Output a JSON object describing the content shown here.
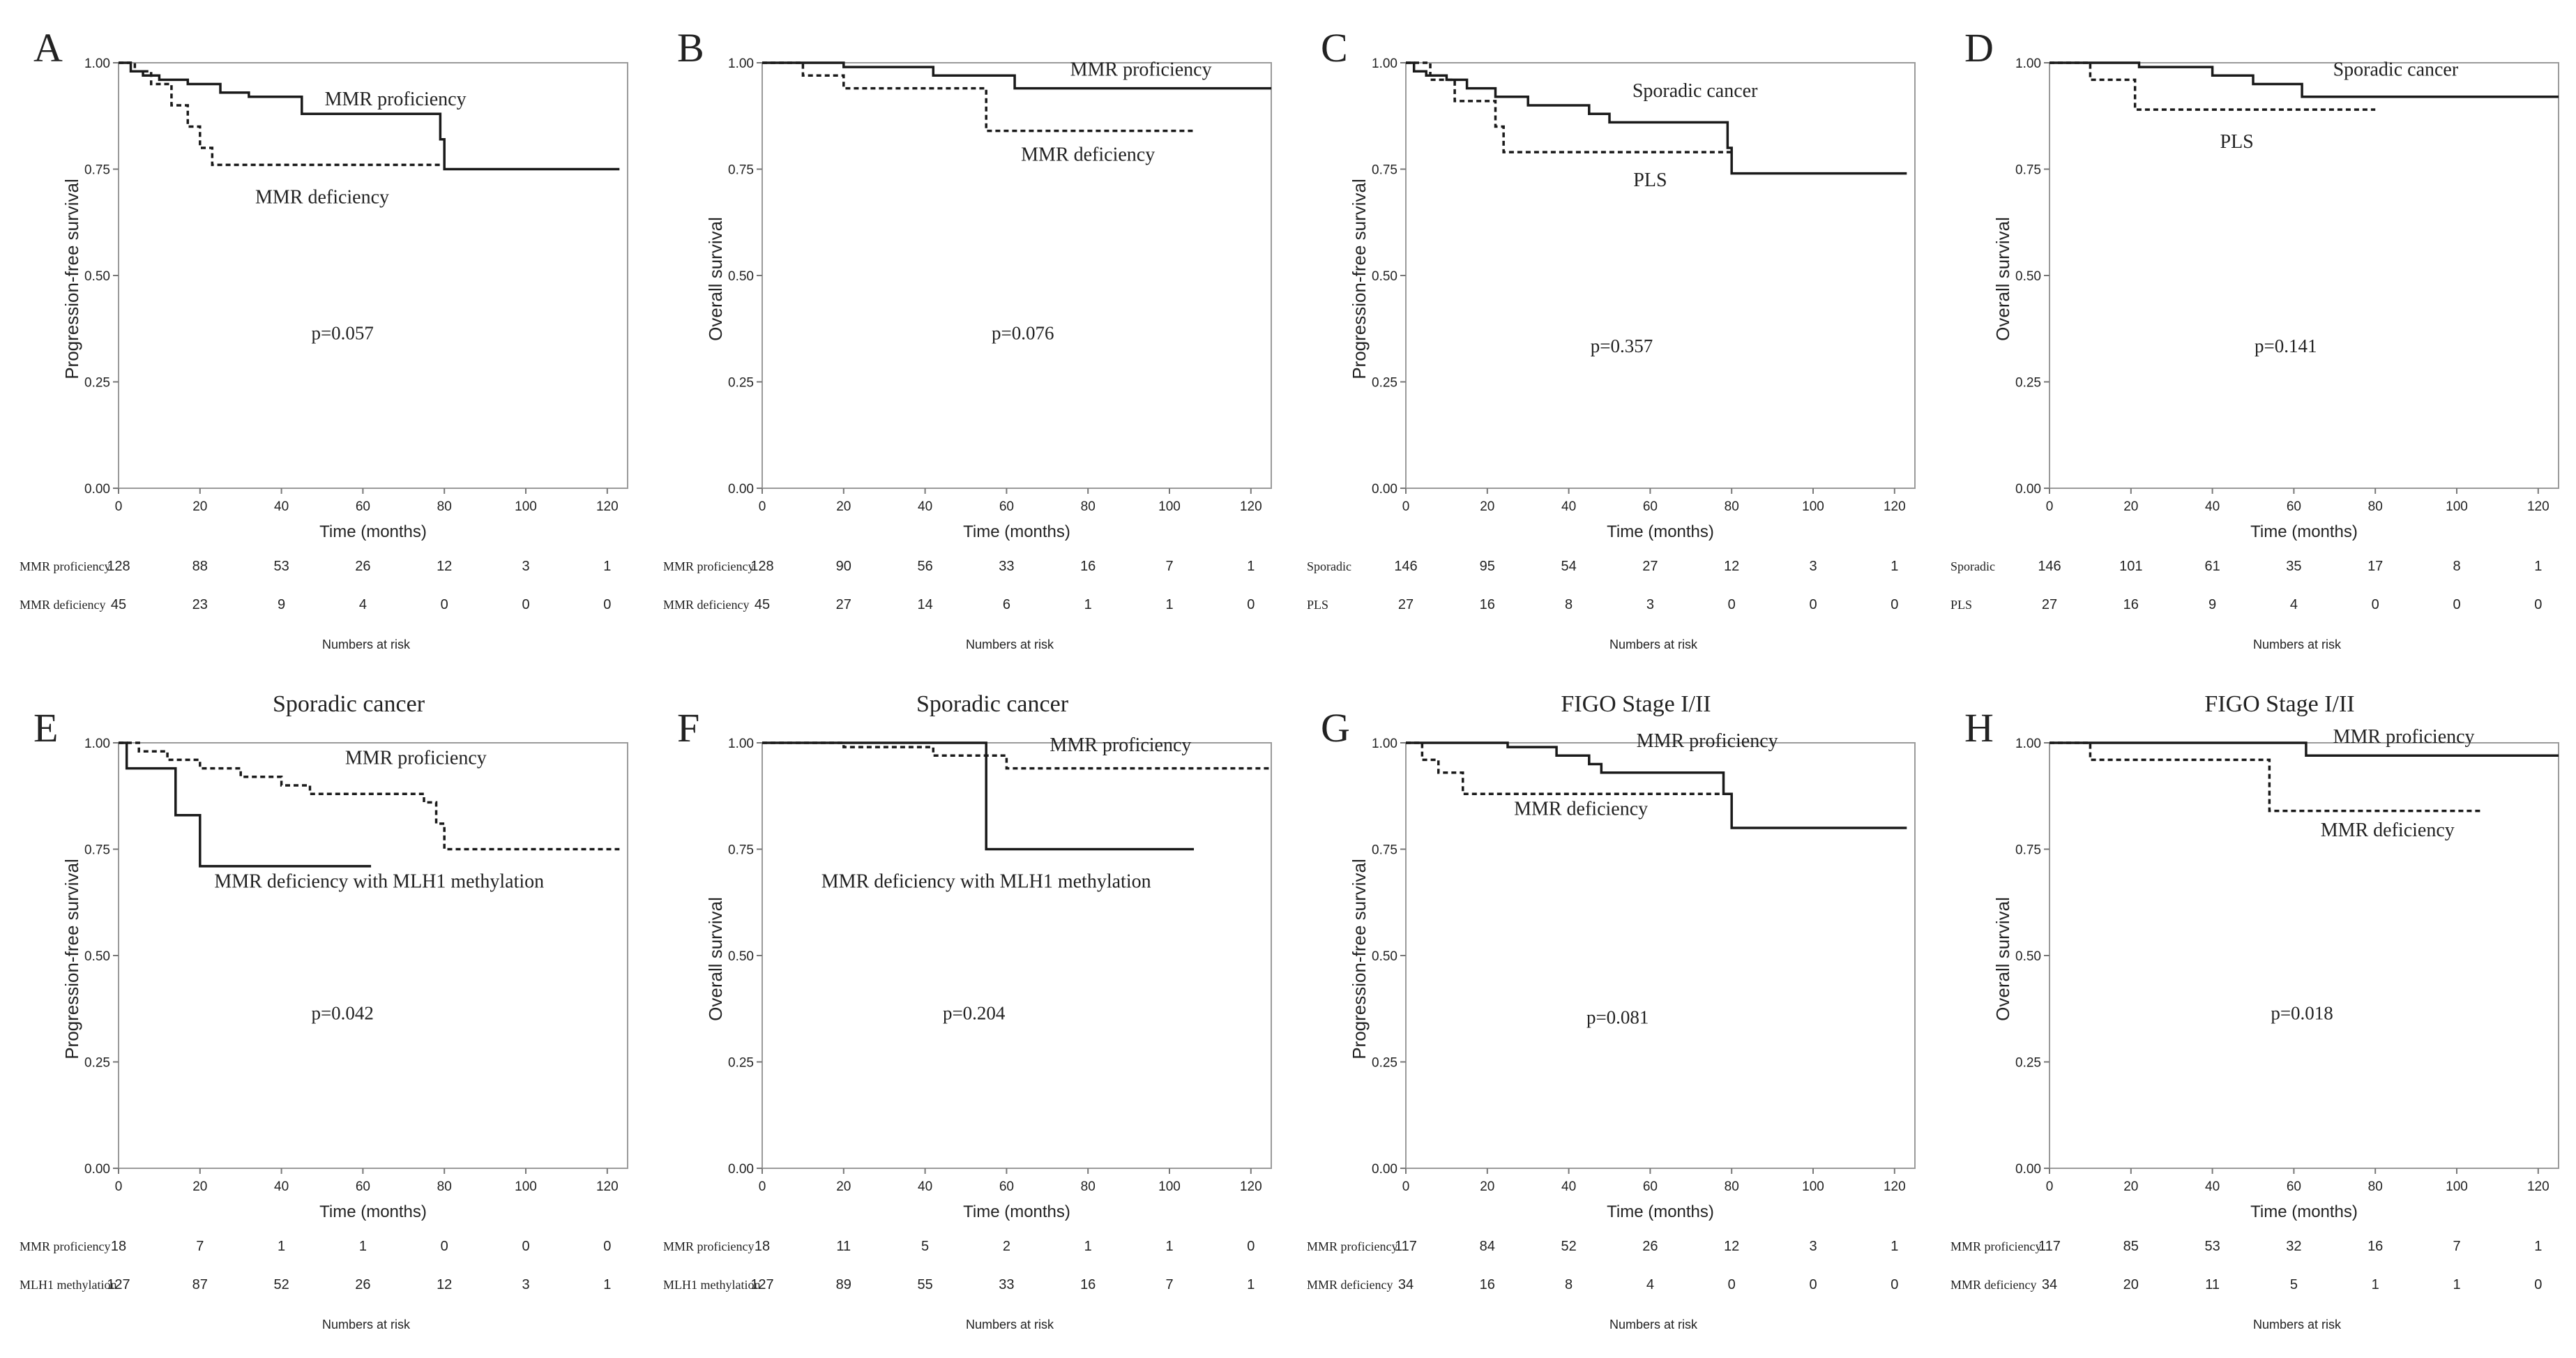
{
  "chart_data": [
    {
      "type": "line",
      "panel_letter": "A",
      "title": "",
      "ylabel": "Progression-free survival",
      "xlabel": "Time (months)",
      "xlim": [
        0,
        125
      ],
      "ylim": [
        0,
        1
      ],
      "xticks": [
        "0",
        "20",
        "40",
        "60",
        "80",
        "100",
        "120"
      ],
      "yticks": [
        "0.00",
        "0.25",
        "0.50",
        "0.75",
        "1.00"
      ],
      "p_value": "p=0.057",
      "p_at": [
        55,
        0.35
      ],
      "series": [
        {
          "name": "MMR proficiency",
          "style": "solid",
          "label_at": [
            68,
            0.9
          ],
          "points": [
            [
              0,
              1.0
            ],
            [
              3,
              0.98
            ],
            [
              6,
              0.97
            ],
            [
              10,
              0.96
            ],
            [
              17,
              0.95
            ],
            [
              25,
              0.93
            ],
            [
              32,
              0.92
            ],
            [
              45,
              0.88
            ],
            [
              59,
              0.88
            ],
            [
              79,
              0.82
            ],
            [
              80,
              0.75
            ],
            [
              123,
              0.75
            ]
          ]
        },
        {
          "name": "MMR deficiency",
          "style": "dashed",
          "label_at": [
            50,
            0.67
          ],
          "points": [
            [
              0,
              1.0
            ],
            [
              4,
              0.98
            ],
            [
              8,
              0.95
            ],
            [
              13,
              0.9
            ],
            [
              17,
              0.85
            ],
            [
              20,
              0.8
            ],
            [
              23,
              0.76
            ],
            [
              79,
              0.76
            ]
          ]
        }
      ],
      "risk_table": {
        "title": "Numbers at risk",
        "rows": [
          {
            "label": "MMR proficiency",
            "values": [
              "128",
              "88",
              "53",
              "26",
              "12",
              "3",
              "1"
            ]
          },
          {
            "label": "MMR deficiency",
            "values": [
              "45",
              "23",
              "9",
              "4",
              "0",
              "0",
              "0"
            ]
          }
        ]
      }
    },
    {
      "type": "line",
      "panel_letter": "B",
      "title": "",
      "ylabel": "Overall survival",
      "xlabel": "Time (months)",
      "xlim": [
        0,
        125
      ],
      "ylim": [
        0,
        1
      ],
      "xticks": [
        "0",
        "20",
        "40",
        "60",
        "80",
        "100",
        "120"
      ],
      "yticks": [
        "0.00",
        "0.25",
        "0.50",
        "0.75",
        "1.00"
      ],
      "p_value": "p=0.076",
      "p_at": [
        64,
        0.35
      ],
      "series": [
        {
          "name": "MMR proficiency",
          "style": "solid",
          "label_at": [
            93,
            0.97
          ],
          "points": [
            [
              0,
              1.0
            ],
            [
              20,
              0.99
            ],
            [
              42,
              0.97
            ],
            [
              62,
              0.94
            ],
            [
              125,
              0.94
            ]
          ]
        },
        {
          "name": "MMR deficiency",
          "style": "dashed",
          "label_at": [
            80,
            0.77
          ],
          "points": [
            [
              0,
              1.0
            ],
            [
              10,
              0.97
            ],
            [
              20,
              0.94
            ],
            [
              55,
              0.84
            ],
            [
              106,
              0.84
            ]
          ]
        }
      ],
      "risk_table": {
        "title": "Numbers at risk",
        "rows": [
          {
            "label": "MMR proficiency",
            "values": [
              "128",
              "90",
              "56",
              "33",
              "16",
              "7",
              "1"
            ]
          },
          {
            "label": "MMR deficiency",
            "values": [
              "45",
              "27",
              "14",
              "6",
              "1",
              "1",
              "0"
            ]
          }
        ]
      }
    },
    {
      "type": "line",
      "panel_letter": "C",
      "title": "",
      "ylabel": "Progression-free survival",
      "xlabel": "Time (months)",
      "xlim": [
        0,
        125
      ],
      "ylim": [
        0,
        1
      ],
      "xticks": [
        "0",
        "20",
        "40",
        "60",
        "80",
        "100",
        "120"
      ],
      "yticks": [
        "0.00",
        "0.25",
        "0.50",
        "0.75",
        "1.00"
      ],
      "p_value": "p=0.357",
      "p_at": [
        53,
        0.32
      ],
      "series": [
        {
          "name": "Sporadic cancer",
          "style": "solid",
          "label_at": [
            71,
            0.92
          ],
          "points": [
            [
              0,
              1.0
            ],
            [
              2,
              0.98
            ],
            [
              5,
              0.97
            ],
            [
              10,
              0.96
            ],
            [
              15,
              0.94
            ],
            [
              22,
              0.92
            ],
            [
              30,
              0.9
            ],
            [
              45,
              0.88
            ],
            [
              50,
              0.86
            ],
            [
              79,
              0.8
            ],
            [
              80,
              0.74
            ],
            [
              123,
              0.74
            ]
          ]
        },
        {
          "name": "PLS",
          "style": "dashed",
          "label_at": [
            60,
            0.71
          ],
          "points": [
            [
              0,
              1.0
            ],
            [
              6,
              0.96
            ],
            [
              12,
              0.91
            ],
            [
              22,
              0.85
            ],
            [
              24,
              0.79
            ],
            [
              80,
              0.79
            ]
          ]
        }
      ],
      "risk_table": {
        "title": "Numbers at risk",
        "rows": [
          {
            "label": "Sporadic",
            "values": [
              "146",
              "95",
              "54",
              "27",
              "12",
              "3",
              "1"
            ]
          },
          {
            "label": "PLS",
            "values": [
              "27",
              "16",
              "8",
              "3",
              "0",
              "0",
              "0"
            ]
          }
        ]
      }
    },
    {
      "type": "line",
      "panel_letter": "D",
      "title": "",
      "ylabel": "Overall survival",
      "xlabel": "Time (months)",
      "xlim": [
        0,
        125
      ],
      "ylim": [
        0,
        1
      ],
      "xticks": [
        "0",
        "20",
        "40",
        "60",
        "80",
        "100",
        "120"
      ],
      "yticks": [
        "0.00",
        "0.25",
        "0.50",
        "0.75",
        "1.00"
      ],
      "p_value": "p=0.141",
      "p_at": [
        58,
        0.32
      ],
      "series": [
        {
          "name": "Sporadic cancer",
          "style": "solid",
          "label_at": [
            85,
            0.97
          ],
          "points": [
            [
              0,
              1.0
            ],
            [
              22,
              0.99
            ],
            [
              40,
              0.97
            ],
            [
              50,
              0.95
            ],
            [
              62,
              0.92
            ],
            [
              125,
              0.92
            ]
          ]
        },
        {
          "name": "PLS",
          "style": "dashed",
          "label_at": [
            46,
            0.8
          ],
          "points": [
            [
              0,
              1.0
            ],
            [
              10,
              0.96
            ],
            [
              21,
              0.89
            ],
            [
              80,
              0.89
            ]
          ]
        }
      ],
      "risk_table": {
        "title": "Numbers at risk",
        "rows": [
          {
            "label": "Sporadic",
            "values": [
              "146",
              "101",
              "61",
              "35",
              "17",
              "8",
              "1"
            ]
          },
          {
            "label": "PLS",
            "values": [
              "27",
              "16",
              "9",
              "4",
              "0",
              "0",
              "0"
            ]
          }
        ]
      }
    },
    {
      "type": "line",
      "panel_letter": "E",
      "title": "Sporadic cancer",
      "ylabel": "Progression-free survival",
      "xlabel": "Time (months)",
      "xlim": [
        0,
        125
      ],
      "ylim": [
        0,
        1
      ],
      "xticks": [
        "0",
        "20",
        "40",
        "60",
        "80",
        "100",
        "120"
      ],
      "yticks": [
        "0.00",
        "0.25",
        "0.50",
        "0.75",
        "1.00"
      ],
      "p_value": "p=0.042",
      "p_at": [
        55,
        0.35
      ],
      "series": [
        {
          "name": "MMR proficiency",
          "style": "dashed",
          "label_at": [
            73,
            0.95
          ],
          "points": [
            [
              0,
              1.0
            ],
            [
              5,
              0.98
            ],
            [
              12,
              0.96
            ],
            [
              20,
              0.94
            ],
            [
              30,
              0.92
            ],
            [
              40,
              0.9
            ],
            [
              47,
              0.88
            ],
            [
              75,
              0.86
            ],
            [
              78,
              0.81
            ],
            [
              80,
              0.75
            ],
            [
              123,
              0.75
            ]
          ]
        },
        {
          "name": "MMR deficiency with MLH1 methylation",
          "style": "solid",
          "label_at": [
            64,
            0.66
          ],
          "points": [
            [
              0,
              1.0
            ],
            [
              2,
              0.94
            ],
            [
              14,
              0.83
            ],
            [
              20,
              0.71
            ],
            [
              62,
              0.71
            ]
          ]
        }
      ],
      "risk_table": {
        "title": "Numbers at risk",
        "rows": [
          {
            "label": "MMR proficiency",
            "values": [
              "18",
              "7",
              "1",
              "1",
              "0",
              "0",
              "0"
            ]
          },
          {
            "label": "MLH1 methylation",
            "values": [
              "127",
              "87",
              "52",
              "26",
              "12",
              "3",
              "1"
            ]
          }
        ]
      }
    },
    {
      "type": "line",
      "panel_letter": "F",
      "title": "Sporadic cancer",
      "ylabel": "Overall survival",
      "xlabel": "Time (months)",
      "xlim": [
        0,
        125
      ],
      "ylim": [
        0,
        1
      ],
      "xticks": [
        "0",
        "20",
        "40",
        "60",
        "80",
        "100",
        "120"
      ],
      "yticks": [
        "0.00",
        "0.25",
        "0.50",
        "0.75",
        "1.00"
      ],
      "p_value": "p=0.204",
      "p_at": [
        52,
        0.35
      ],
      "series": [
        {
          "name": "MMR proficiency",
          "style": "dashed",
          "label_at": [
            88,
            0.98
          ],
          "points": [
            [
              0,
              1.0
            ],
            [
              20,
              0.99
            ],
            [
              42,
              0.97
            ],
            [
              60,
              0.94
            ],
            [
              125,
              0.94
            ]
          ]
        },
        {
          "name": "MMR deficiency with MLH1 methylation",
          "style": "solid",
          "label_at": [
            55,
            0.66
          ],
          "points": [
            [
              0,
              1.0
            ],
            [
              54,
              1.0
            ],
            [
              55,
              0.75
            ],
            [
              106,
              0.75
            ]
          ]
        }
      ],
      "risk_table": {
        "title": "Numbers at risk",
        "rows": [
          {
            "label": "MMR proficiency",
            "values": [
              "18",
              "11",
              "5",
              "2",
              "1",
              "1",
              "0"
            ]
          },
          {
            "label": "MLH1 methylation",
            "values": [
              "127",
              "89",
              "55",
              "33",
              "16",
              "7",
              "1"
            ]
          }
        ]
      }
    },
    {
      "type": "line",
      "panel_letter": "G",
      "title": "FIGO Stage I/II",
      "ylabel": "Progression-free survival",
      "xlabel": "Time (months)",
      "xlim": [
        0,
        125
      ],
      "ylim": [
        0,
        1
      ],
      "xticks": [
        "0",
        "20",
        "40",
        "60",
        "80",
        "100",
        "120"
      ],
      "yticks": [
        "0.00",
        "0.25",
        "0.50",
        "0.75",
        "1.00"
      ],
      "p_value": "p=0.081",
      "p_at": [
        52,
        0.34
      ],
      "series": [
        {
          "name": "MMR proficiency",
          "style": "solid",
          "label_at": [
            74,
            0.99
          ],
          "points": [
            [
              0,
              1.0
            ],
            [
              25,
              0.99
            ],
            [
              37,
              0.97
            ],
            [
              45,
              0.95
            ],
            [
              48,
              0.93
            ],
            [
              78,
              0.88
            ],
            [
              80,
              0.8
            ],
            [
              123,
              0.8
            ]
          ]
        },
        {
          "name": "MMR deficiency",
          "style": "dashed",
          "label_at": [
            43,
            0.83
          ],
          "points": [
            [
              0,
              1.0
            ],
            [
              4,
              0.96
            ],
            [
              8,
              0.93
            ],
            [
              14,
              0.88
            ],
            [
              79,
              0.88
            ]
          ]
        }
      ],
      "risk_table": {
        "title": "Numbers at risk",
        "rows": [
          {
            "label": "MMR proficiency",
            "values": [
              "117",
              "84",
              "52",
              "26",
              "12",
              "3",
              "1"
            ]
          },
          {
            "label": "MMR deficiency",
            "values": [
              "34",
              "16",
              "8",
              "4",
              "0",
              "0",
              "0"
            ]
          }
        ]
      }
    },
    {
      "type": "line",
      "panel_letter": "H",
      "title": "FIGO Stage I/II",
      "ylabel": "Overall survival",
      "xlabel": "Time (months)",
      "xlim": [
        0,
        125
      ],
      "ylim": [
        0,
        1
      ],
      "xticks": [
        "0",
        "20",
        "40",
        "60",
        "80",
        "100",
        "120"
      ],
      "yticks": [
        "0.00",
        "0.25",
        "0.50",
        "0.75",
        "1.00"
      ],
      "p_value": "p=0.018",
      "p_at": [
        62,
        0.35
      ],
      "series": [
        {
          "name": "MMR proficiency",
          "style": "solid",
          "label_at": [
            87,
            1.0
          ],
          "points": [
            [
              0,
              1.0
            ],
            [
              62,
              1.0
            ],
            [
              63,
              0.97
            ],
            [
              125,
              0.97
            ]
          ]
        },
        {
          "name": "MMR deficiency",
          "style": "dashed",
          "label_at": [
            83,
            0.78
          ],
          "points": [
            [
              0,
              1.0
            ],
            [
              10,
              0.96
            ],
            [
              54,
              0.84
            ],
            [
              106,
              0.84
            ]
          ]
        }
      ],
      "risk_table": {
        "title": "Numbers at risk",
        "rows": [
          {
            "label": "MMR proficiency",
            "values": [
              "117",
              "85",
              "53",
              "32",
              "16",
              "7",
              "1"
            ]
          },
          {
            "label": "MMR deficiency",
            "values": [
              "34",
              "20",
              "11",
              "5",
              "1",
              "1",
              "0"
            ]
          }
        ]
      }
    }
  ]
}
